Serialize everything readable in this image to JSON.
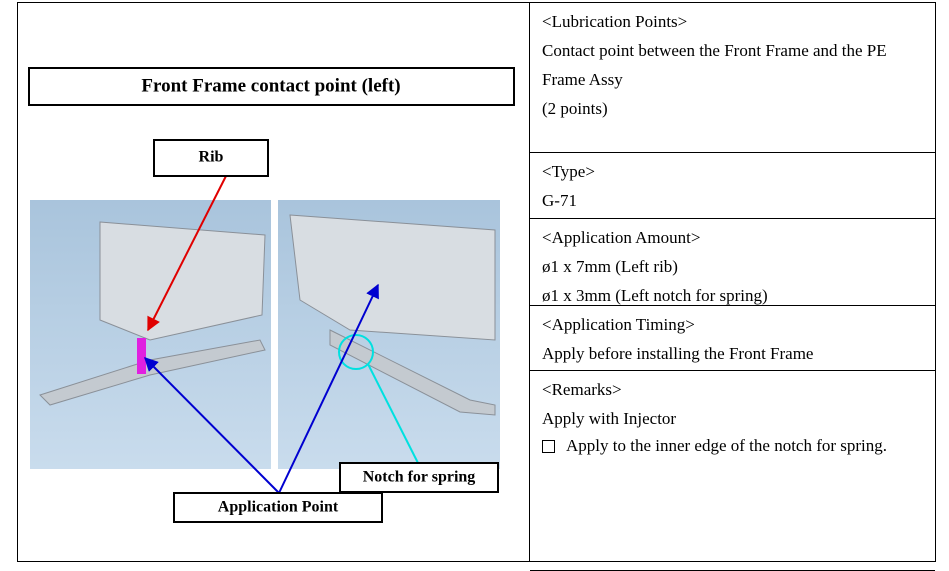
{
  "figure": {
    "title": "Front Frame contact point (left)",
    "labels": {
      "rib": "Rib",
      "notch": "Notch for spring",
      "application_point": "Application Point"
    }
  },
  "sections": [
    {
      "heading": "<Lubrication Points>",
      "lines": [
        "Contact point between the Front Frame and the PE Frame Assy",
        "(2 points)"
      ]
    },
    {
      "heading": "<Type>",
      "lines": [
        "G-71"
      ]
    },
    {
      "heading": "<Application Amount>",
      "lines": [
        "ø1 x 7mm (Left rib)",
        "ø1 x 3mm (Left notch for spring)"
      ]
    },
    {
      "heading": "<Application Timing>",
      "lines": [
        "Apply before installing the Front Frame"
      ]
    },
    {
      "heading": "<Remarks>",
      "lines": [
        "Apply with Injector"
      ],
      "checklist": [
        "Apply to the inner edge of the notch for spring."
      ]
    }
  ]
}
